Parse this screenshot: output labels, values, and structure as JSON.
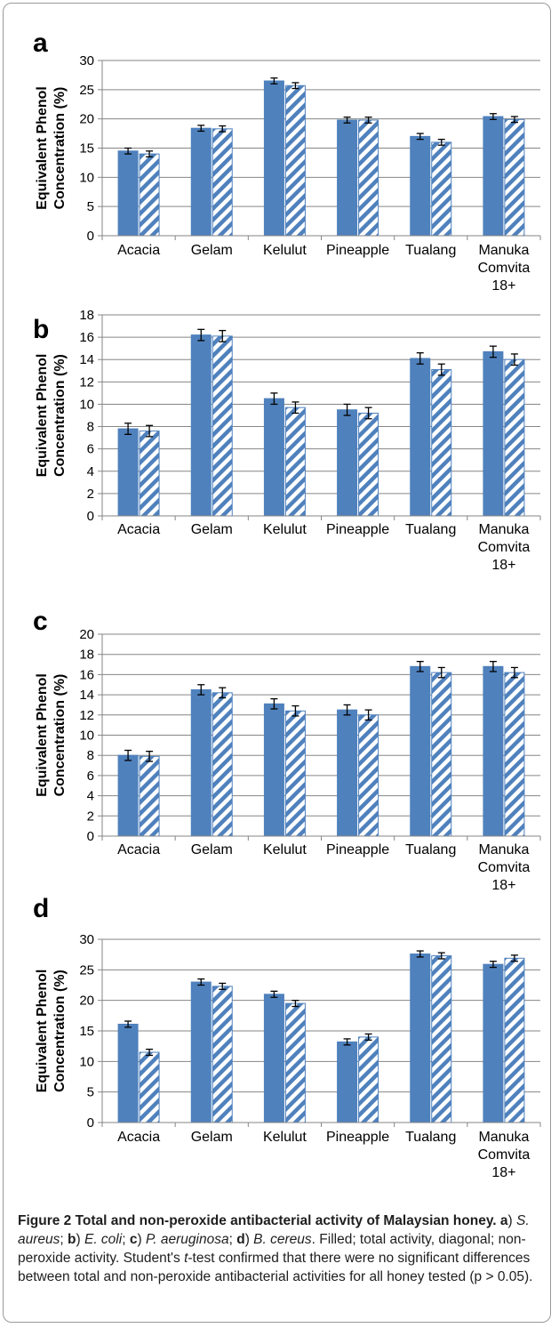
{
  "figure": {
    "caption": {
      "title": "Figure 2 Total and non-peroxide antibacterial activity of Malaysian honey.",
      "panel_a_letter": "a",
      "panel_a_org": "S. aureus",
      "panel_b_letter": "b",
      "panel_b_org": "E. coli",
      "panel_c_letter": "c",
      "panel_c_org": "P. aeruginosa",
      "panel_d_letter": "d",
      "panel_d_org": "B. cereus",
      "sep_close": ")",
      "sep_semicolon": ";",
      "sep_period": ".",
      "body_1": "Filled; total activity, diagonal; non-peroxide activity. Student's",
      "t_italic": "t",
      "body_2": "-test confirmed that there were no significant differences between total and non-peroxide antibacterial activities for all honey tested (p > 0.05)."
    }
  },
  "colors": {
    "filled": "#4f81bd",
    "hatch": "#4f81bd",
    "background": "#ffffff",
    "grid": "#868686"
  },
  "chart_data": [
    {
      "panel": "a",
      "type": "bar",
      "ylabel": [
        "Equivalent Phenol",
        "Concentration (%)"
      ],
      "categories": [
        [
          "Acacia"
        ],
        [
          "Gelam"
        ],
        [
          "Kelulut"
        ],
        [
          "Pineapple"
        ],
        [
          "Tualang"
        ],
        [
          "Manuka",
          "Comvita",
          "18+"
        ]
      ],
      "ylim": [
        0,
        30
      ],
      "yticks": [
        0,
        5,
        10,
        15,
        20,
        25,
        30
      ],
      "grid": true,
      "series": [
        {
          "style": "filled",
          "values": [
            14.5,
            18.4,
            26.5,
            19.8,
            17.0,
            20.4
          ],
          "errors": [
            0.5,
            0.5,
            0.5,
            0.5,
            0.5,
            0.5
          ]
        },
        {
          "style": "diagonal",
          "values": [
            14.0,
            18.3,
            25.7,
            19.8,
            16.0,
            19.9
          ],
          "errors": [
            0.5,
            0.5,
            0.5,
            0.5,
            0.5,
            0.5
          ]
        }
      ]
    },
    {
      "panel": "b",
      "type": "bar",
      "ylabel": [
        "Equivalent Phenol",
        "Concentration (%)"
      ],
      "categories": [
        [
          "Acacia"
        ],
        [
          "Gelam"
        ],
        [
          "Kelulut"
        ],
        [
          "Pineapple"
        ],
        [
          "Tualang"
        ],
        [
          "Manuka",
          "Comvita",
          "18+"
        ]
      ],
      "ylim": [
        0,
        18
      ],
      "yticks": [
        0,
        2,
        4,
        6,
        8,
        10,
        12,
        14,
        16,
        18
      ],
      "grid": true,
      "series": [
        {
          "style": "filled",
          "values": [
            7.8,
            16.2,
            10.5,
            9.5,
            14.1,
            14.7
          ],
          "errors": [
            0.5,
            0.5,
            0.5,
            0.5,
            0.5,
            0.5
          ]
        },
        {
          "style": "diagonal",
          "values": [
            7.6,
            16.1,
            9.7,
            9.2,
            13.1,
            14.0
          ],
          "errors": [
            0.5,
            0.5,
            0.5,
            0.5,
            0.5,
            0.5
          ]
        }
      ]
    },
    {
      "panel": "c",
      "type": "bar",
      "ylabel": [
        "Equivalent Phenol",
        "Concentration (%)"
      ],
      "categories": [
        [
          "Acacia"
        ],
        [
          "Gelam"
        ],
        [
          "Kelulut"
        ],
        [
          "Pineapple"
        ],
        [
          "Tualang"
        ],
        [
          "Manuka",
          "Comvita",
          "18+"
        ]
      ],
      "ylim": [
        0,
        20
      ],
      "yticks": [
        0,
        2,
        4,
        6,
        8,
        10,
        12,
        14,
        16,
        18,
        20
      ],
      "grid": true,
      "series": [
        {
          "style": "filled",
          "values": [
            8.0,
            14.5,
            13.1,
            12.5,
            16.8,
            16.8
          ],
          "errors": [
            0.5,
            0.5,
            0.5,
            0.5,
            0.5,
            0.5
          ]
        },
        {
          "style": "diagonal",
          "values": [
            7.9,
            14.2,
            12.4,
            12.0,
            16.2,
            16.2
          ],
          "errors": [
            0.5,
            0.5,
            0.5,
            0.5,
            0.5,
            0.5
          ]
        }
      ]
    },
    {
      "panel": "d",
      "type": "bar",
      "ylabel": [
        "Equivalent Phenol",
        "Concentration (%)"
      ],
      "categories": [
        [
          "Acacia"
        ],
        [
          "Gelam"
        ],
        [
          "Kelulut"
        ],
        [
          "Pineapple"
        ],
        [
          "Tualang"
        ],
        [
          "Manuka",
          "Comvita",
          "18+"
        ]
      ],
      "ylim": [
        0,
        30
      ],
      "yticks": [
        0,
        5,
        10,
        15,
        20,
        25,
        30
      ],
      "grid": true,
      "series": [
        {
          "style": "filled",
          "values": [
            16.1,
            23.0,
            21.0,
            13.2,
            27.6,
            25.9
          ],
          "errors": [
            0.5,
            0.5,
            0.5,
            0.5,
            0.5,
            0.5
          ]
        },
        {
          "style": "diagonal",
          "values": [
            11.5,
            22.3,
            19.5,
            14.0,
            27.3,
            26.9
          ],
          "errors": [
            0.5,
            0.5,
            0.5,
            0.5,
            0.5,
            0.5
          ]
        }
      ]
    }
  ]
}
